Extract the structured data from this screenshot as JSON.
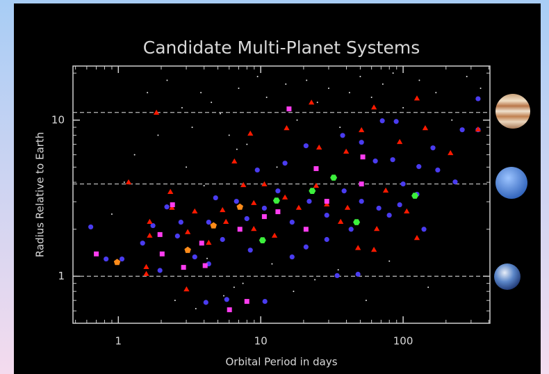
{
  "chart_data": {
    "type": "scatter",
    "title": "Candidate Multi-Planet Systems",
    "xlabel": "Orbital Period in days",
    "ylabel": "Radius Relative to Earth",
    "log_x": true,
    "log_y": true,
    "xlim": [
      0.48,
      407
    ],
    "ylim": [
      0.5,
      22.2
    ],
    "xticks": [
      1,
      10,
      100
    ],
    "yticks": [
      1,
      10
    ],
    "xminor_ticks": [
      0.5,
      0.6,
      0.7,
      0.8,
      0.9,
      2,
      3,
      4,
      5,
      6,
      7,
      8,
      9,
      20,
      30,
      40,
      50,
      60,
      70,
      80,
      90,
      200,
      300,
      400
    ],
    "yminor_ticks": [
      0.5,
      0.6,
      0.7,
      0.8,
      0.9,
      2,
      3,
      4,
      5,
      6,
      7,
      8,
      9,
      20
    ],
    "hlines": [
      1,
      3.9,
      11.2
    ],
    "series": [
      {
        "color": "#e8e8e8",
        "marker": "dot",
        "x": [
          0.9,
          1.3,
          1.6,
          2.2,
          2.8,
          3.3,
          3.8,
          4.5,
          5.2,
          6,
          7,
          8,
          9.5,
          11,
          13,
          15,
          18,
          21,
          25,
          30,
          36,
          42,
          50,
          60,
          72,
          85,
          100,
          130,
          170,
          220,
          280,
          350,
          2.5,
          3.5,
          4.2,
          5.5,
          6.5,
          7.5,
          12,
          17,
          24,
          35,
          55,
          80,
          150,
          1.1,
          1.9,
          3,
          4,
          6.8
        ],
        "y": [
          2.5,
          6,
          15,
          18,
          12,
          9,
          15,
          13,
          11,
          8,
          16,
          7,
          19,
          14,
          5,
          17,
          10,
          18,
          13,
          16,
          9,
          15,
          19,
          14,
          17,
          20,
          12,
          18,
          15,
          10,
          19,
          16,
          0.7,
          0.62,
          1.3,
          0.75,
          0.85,
          0.9,
          1.2,
          0.8,
          0.95,
          1.1,
          0.7,
          1.25,
          0.85,
          4,
          8,
          5,
          3.8,
          6.5
        ]
      },
      {
        "color": "#4a3cf0",
        "marker": "circle",
        "x": [
          0.64,
          0.82,
          1.06,
          4.12,
          5.77,
          10.7,
          71.4,
          89.4,
          336,
          260,
          336,
          162,
          129,
          232,
          84.5,
          63.8,
          51.0,
          37.6,
          20.8,
          14.8,
          9.46,
          4.82,
          2.19,
          1.75,
          1.48,
          2.6,
          3.44,
          4.31,
          5.39,
          6.75,
          7.99,
          10.6,
          13.2,
          16.6,
          21.9,
          29.1,
          38.5,
          51.0,
          67.5,
          94.6,
          100,
          125,
          175,
          140,
          79.9,
          43.1,
          29.1,
          16.6,
          20.8,
          8.45,
          4.31,
          2.75,
          1.96,
          34.4,
          48.2
        ],
        "y": [
          2.07,
          1.29,
          1.29,
          0.68,
          0.71,
          0.69,
          9.9,
          9.8,
          13.7,
          8.67,
          8.67,
          6.64,
          5.04,
          4.02,
          5.58,
          5.47,
          7.21,
          7.98,
          6.85,
          5.3,
          4.79,
          3.18,
          2.78,
          2.11,
          1.63,
          1.81,
          1.33,
          2.22,
          1.72,
          3.02,
          2.34,
          2.73,
          3.52,
          2.22,
          3.02,
          2.46,
          3.52,
          3.02,
          2.73,
          2.87,
          3.9,
          3.35,
          4.79,
          2.0,
          2.46,
          2.0,
          1.72,
          1.33,
          1.54,
          1.47,
          1.2,
          2.22,
          1.09,
          1.01,
          1.03
        ]
      },
      {
        "color": "#ff1a00",
        "marker": "triangle",
        "x": [
          1.85,
          1.18,
          22.7,
          15.2,
          51.0,
          62.4,
          143,
          125,
          336,
          215,
          6.53,
          8.45,
          25.7,
          39.8,
          94.6,
          75.5,
          106,
          65.3,
          48.2,
          62.4,
          125,
          1.57,
          1.57,
          2.32,
          2.38,
          3.01,
          3.07,
          4.31,
          5.39,
          7.55,
          10.6,
          14.8,
          18.5,
          29.1,
          40.7,
          36.4,
          8.94,
          12.5,
          5.7,
          3.44,
          1.66,
          8.94,
          24.5,
          1.66
        ],
        "y": [
          11.1,
          3.98,
          12.9,
          8.84,
          8.58,
          12.0,
          8.84,
          13.7,
          8.67,
          6.12,
          5.41,
          8.15,
          6.64,
          6.25,
          7.21,
          3.52,
          2.59,
          2.0,
          1.51,
          1.47,
          1.75,
          1.14,
          1.03,
          3.45,
          2.73,
          0.82,
          1.91,
          1.63,
          2.64,
          3.82,
          3.86,
          3.18,
          2.73,
          2.87,
          2.73,
          2.22,
          2.0,
          1.81,
          2.22,
          2.59,
          1.81,
          2.93,
          3.78,
          2.22
        ]
      },
      {
        "color": "#ff3df0",
        "marker": "square",
        "x": [
          0.7,
          15.8,
          52.1,
          24.5,
          2.03,
          4.07,
          6.03,
          7.99,
          2.87,
          13.2,
          7.14,
          3.85,
          29.1,
          51.0,
          2.4,
          20.8,
          10.6,
          1.96
        ],
        "y": [
          1.39,
          11.8,
          5.81,
          4.89,
          1.39,
          1.17,
          0.61,
          0.69,
          1.14,
          2.59,
          2.0,
          1.63,
          3.02,
          3.9,
          2.87,
          2.0,
          2.41,
          1.85
        ]
      },
      {
        "color": "#ff8c1a",
        "marker": "pentagon",
        "x": [
          0.98,
          3.07,
          4.66,
          7.14
        ],
        "y": [
          1.23,
          1.47,
          2.11,
          2.78
        ]
      },
      {
        "color": "#3cf03c",
        "marker": "hexagon",
        "x": [
          12.9,
          23.0,
          32.5,
          10.3,
          47.1,
          121
        ],
        "y": [
          3.05,
          3.52,
          4.28,
          1.7,
          2.22,
          3.28
        ]
      }
    ]
  }
}
